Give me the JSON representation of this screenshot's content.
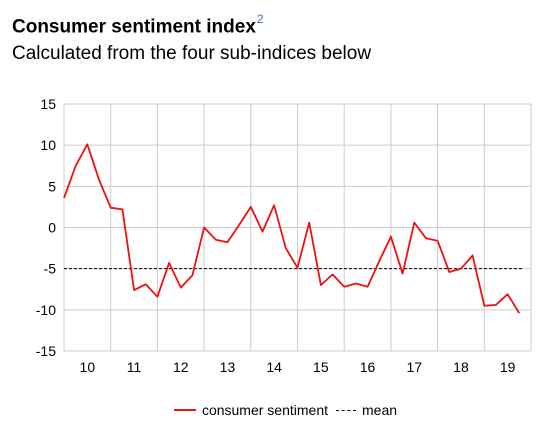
{
  "header": {
    "title": "Consumer sentiment index",
    "title_footnote": "2",
    "subtitle": "Calculated from the four sub-indices below"
  },
  "legend": {
    "series_label": "consumer sentiment",
    "mean_label": "mean"
  },
  "colors": {
    "series": "#ee1111",
    "mean": "#000000",
    "grid": "#cccccc",
    "footnote": "#3b5fcf"
  },
  "chart_data": {
    "type": "line",
    "title": "Consumer sentiment index",
    "subtitle": "Calculated from the four sub-indices below",
    "xlabel": "",
    "ylabel": "",
    "x_tick_labels": [
      "10",
      "11",
      "12",
      "13",
      "14",
      "15",
      "16",
      "17",
      "18",
      "19"
    ],
    "xlim": [
      9.5,
      19.5
    ],
    "ylim": [
      -15,
      15
    ],
    "y_ticks": [
      15,
      10,
      5,
      0,
      -5,
      -10,
      -15
    ],
    "grid": true,
    "legend_position": "bottom-center",
    "mean": -5,
    "series": [
      {
        "name": "consumer sentiment",
        "color": "#ee1111",
        "x": [
          9.5,
          9.75,
          10.0,
          10.25,
          10.5,
          10.75,
          11.0,
          11.25,
          11.5,
          11.75,
          12.0,
          12.25,
          12.5,
          12.75,
          13.0,
          13.25,
          13.5,
          13.75,
          14.0,
          14.25,
          14.5,
          14.75,
          15.0,
          15.25,
          15.5,
          15.75,
          16.0,
          16.25,
          16.5,
          16.75,
          17.0,
          17.25,
          17.5,
          17.75,
          18.0,
          18.25,
          18.5,
          18.75,
          19.0,
          19.25
        ],
        "values": [
          3.6,
          7.5,
          10.1,
          5.8,
          2.4,
          2.2,
          -7.6,
          -6.9,
          -8.4,
          -4.3,
          -7.3,
          -5.8,
          0.0,
          -1.5,
          -1.8,
          0.3,
          2.5,
          -0.5,
          2.7,
          -2.5,
          -4.9,
          0.6,
          -7.0,
          -5.7,
          -7.2,
          -6.8,
          -7.2,
          -4.1,
          -1.1,
          -5.6,
          0.6,
          -1.3,
          -1.6,
          -5.4,
          -5.0,
          -3.4,
          -9.5,
          -9.4,
          -8.1,
          -10.4
        ]
      }
    ]
  }
}
